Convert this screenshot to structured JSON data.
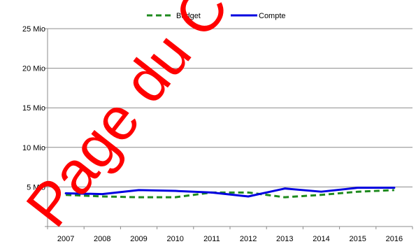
{
  "chart_data": {
    "type": "line",
    "title": "",
    "xlabel": "",
    "ylabel": "",
    "x": [
      "2007",
      "2008",
      "2009",
      "2010",
      "2011",
      "2012",
      "2013",
      "2014",
      "2015",
      "2016"
    ],
    "y_ticks": [
      "5 Mio",
      "10 Mio",
      "15 Mio",
      "20 Mio",
      "25 Mio"
    ],
    "ylim": [
      0,
      25000000
    ],
    "grid": true,
    "legend_position": "top",
    "series": [
      {
        "name": "Budget",
        "color": "#1e8a1e",
        "style": "dashed",
        "values": [
          4000000,
          3800000,
          3700000,
          3700000,
          4300000,
          4300000,
          3700000,
          4000000,
          4400000,
          4600000
        ]
      },
      {
        "name": "Compte",
        "color": "#0000e0",
        "style": "solid",
        "values": [
          4200000,
          4100000,
          4600000,
          4500000,
          4300000,
          3800000,
          4800000,
          4400000,
          4900000,
          4900000
        ]
      }
    ]
  },
  "watermark": {
    "text": "Page du Compte",
    "color": "#ff0000"
  }
}
